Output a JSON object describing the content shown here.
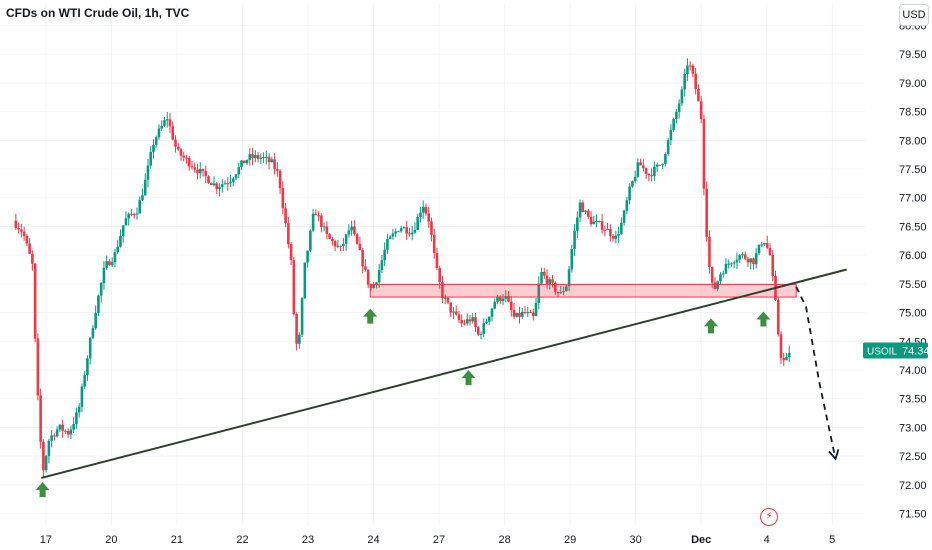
{
  "header": {
    "title": "CFDs on WTI Crude Oil, 1h, TVC",
    "currency_button": "USD"
  },
  "colors": {
    "up": "#089981",
    "down": "#f23645",
    "trendline": "#2f3f2f",
    "zone_fill": "#f23645",
    "arrow": "#3e8e41",
    "price_tag": "#089981",
    "background": "#ffffff"
  },
  "icons": {
    "flash": "lightning-icon"
  },
  "chart_data": {
    "type": "candlestick",
    "symbol": "USOIL",
    "last_price": "74.34",
    "ylim": [
      71.3,
      80.2
    ],
    "y_ticks": [
      "71.50",
      "72.00",
      "72.50",
      "73.00",
      "73.50",
      "74.00",
      "74.50",
      "75.00",
      "75.50",
      "76.00",
      "76.50",
      "77.00",
      "77.50",
      "78.00",
      "78.50",
      "79.00",
      "79.50",
      "80.00"
    ],
    "x_ticks": [
      {
        "label": "17",
        "x": 0.5
      },
      {
        "label": "20",
        "x": 1.5
      },
      {
        "label": "21",
        "x": 2.5
      },
      {
        "label": "22",
        "x": 3.5
      },
      {
        "label": "23",
        "x": 4.5
      },
      {
        "label": "24",
        "x": 5.5
      },
      {
        "label": "27",
        "x": 6.5
      },
      {
        "label": "28",
        "x": 7.5
      },
      {
        "label": "29",
        "x": 8.5
      },
      {
        "label": "30",
        "x": 9.5
      },
      {
        "label": "Dec",
        "x": 10.5
      },
      {
        "label": "4",
        "x": 11.5
      },
      {
        "label": "5",
        "x": 12.5
      }
    ],
    "xlim": [
      -0.2,
      13.0
    ],
    "keypoints": [
      [
        0.0,
        76.6
      ],
      [
        0.15,
        76.4
      ],
      [
        0.3,
        75.8
      ],
      [
        0.35,
        74.0
      ],
      [
        0.45,
        72.2
      ],
      [
        0.55,
        72.8
      ],
      [
        0.7,
        73.0
      ],
      [
        0.85,
        72.9
      ],
      [
        1.0,
        73.3
      ],
      [
        1.1,
        74.0
      ],
      [
        1.25,
        75.0
      ],
      [
        1.4,
        75.8
      ],
      [
        1.55,
        76.0
      ],
      [
        1.7,
        76.6
      ],
      [
        1.9,
        76.8
      ],
      [
        2.0,
        77.2
      ],
      [
        2.15,
        78.0
      ],
      [
        2.35,
        78.4
      ],
      [
        2.5,
        77.8
      ],
      [
        2.7,
        77.6
      ],
      [
        2.9,
        77.4
      ],
      [
        3.1,
        77.2
      ],
      [
        3.3,
        77.3
      ],
      [
        3.5,
        77.6
      ],
      [
        3.6,
        77.7
      ],
      [
        3.8,
        77.7
      ],
      [
        3.95,
        77.6
      ],
      [
        4.05,
        77.4
      ],
      [
        4.15,
        76.6
      ],
      [
        4.25,
        75.8
      ],
      [
        4.3,
        74.6
      ],
      [
        4.35,
        74.3
      ],
      [
        4.45,
        75.8
      ],
      [
        4.6,
        76.8
      ],
      [
        4.8,
        76.3
      ],
      [
        5.0,
        76.1
      ],
      [
        5.15,
        76.5
      ],
      [
        5.3,
        76.0
      ],
      [
        5.45,
        75.4
      ],
      [
        5.55,
        75.6
      ],
      [
        5.7,
        76.2
      ],
      [
        5.9,
        76.5
      ],
      [
        6.1,
        76.4
      ],
      [
        6.25,
        76.9
      ],
      [
        6.35,
        76.6
      ],
      [
        6.45,
        75.8
      ],
      [
        6.55,
        75.3
      ],
      [
        6.7,
        75.0
      ],
      [
        6.85,
        74.8
      ],
      [
        7.0,
        74.9
      ],
      [
        7.1,
        74.6
      ],
      [
        7.2,
        74.8
      ],
      [
        7.35,
        75.2
      ],
      [
        7.5,
        75.3
      ],
      [
        7.65,
        74.9
      ],
      [
        7.8,
        75.0
      ],
      [
        7.95,
        74.9
      ],
      [
        8.05,
        75.7
      ],
      [
        8.2,
        75.5
      ],
      [
        8.35,
        75.3
      ],
      [
        8.45,
        75.5
      ],
      [
        8.55,
        76.3
      ],
      [
        8.65,
        76.9
      ],
      [
        8.8,
        76.6
      ],
      [
        9.0,
        76.5
      ],
      [
        9.2,
        76.3
      ],
      [
        9.3,
        76.6
      ],
      [
        9.4,
        77.1
      ],
      [
        9.55,
        77.6
      ],
      [
        9.7,
        77.4
      ],
      [
        9.9,
        77.6
      ],
      [
        10.05,
        78.2
      ],
      [
        10.2,
        78.8
      ],
      [
        10.3,
        79.4
      ],
      [
        10.4,
        79.0
      ],
      [
        10.5,
        78.4
      ],
      [
        10.55,
        77.0
      ],
      [
        10.6,
        76.1
      ],
      [
        10.65,
        75.5
      ],
      [
        10.7,
        75.4
      ],
      [
        10.8,
        75.7
      ],
      [
        10.95,
        75.9
      ],
      [
        11.1,
        76.0
      ],
      [
        11.3,
        75.9
      ],
      [
        11.45,
        76.3
      ],
      [
        11.55,
        76.0
      ],
      [
        11.65,
        75.0
      ],
      [
        11.7,
        74.3
      ],
      [
        11.78,
        74.1
      ],
      [
        11.85,
        74.34
      ]
    ],
    "support_zone": {
      "x0": 5.45,
      "x1": 11.95,
      "y0": 75.27,
      "y1": 75.49
    },
    "trendline": {
      "x0": 0.43,
      "y0": 72.12,
      "x1": 12.72,
      "y1": 75.75
    },
    "projection": [
      [
        11.95,
        75.45
      ],
      [
        12.1,
        75.1
      ],
      [
        12.3,
        73.8
      ],
      [
        12.55,
        72.45
      ]
    ],
    "arrows": [
      [
        0.45,
        72.1
      ],
      [
        5.45,
        75.12
      ],
      [
        6.95,
        74.05
      ],
      [
        10.65,
        74.95
      ],
      [
        11.45,
        75.07
      ]
    ]
  }
}
